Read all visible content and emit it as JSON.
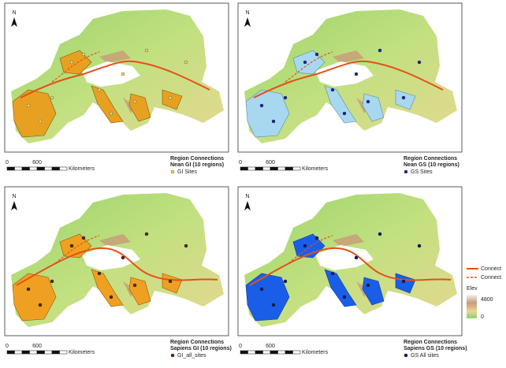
{
  "panels": [
    {
      "north": "N",
      "scale": {
        "start": "0",
        "mid": "600",
        "unit": "Kilometers"
      },
      "legend": {
        "title": "Region Connections",
        "subtitle": "Nean GI (10 regions)",
        "sites": "GI Sites"
      }
    },
    {
      "north": "N",
      "scale": {
        "start": "0",
        "mid": "600",
        "unit": "Kilometers"
      },
      "legend": {
        "title": "Region Connections",
        "subtitle": "Nean GS (10 regions)",
        "sites": "GS Sites"
      }
    },
    {
      "north": "N",
      "scale": {
        "start": "0",
        "mid": "600",
        "unit": "Kilometers"
      },
      "legend": {
        "title": "Region Connections",
        "subtitle": "Sapiens GI (10 regions)",
        "sites": "GI_all_sites"
      }
    },
    {
      "north": "N",
      "scale": {
        "start": "0",
        "mid": "600",
        "unit": "Kilometers"
      },
      "legend": {
        "title": "Region Connections",
        "subtitle": "Sapiens GS (10 regions)",
        "sites": "GS All sites"
      }
    }
  ],
  "legend": {
    "connect_solid": "Connect",
    "connect_dashed": "Connect",
    "elev_title": "Elev",
    "elev_high": 4800,
    "elev_low": 0
  }
}
